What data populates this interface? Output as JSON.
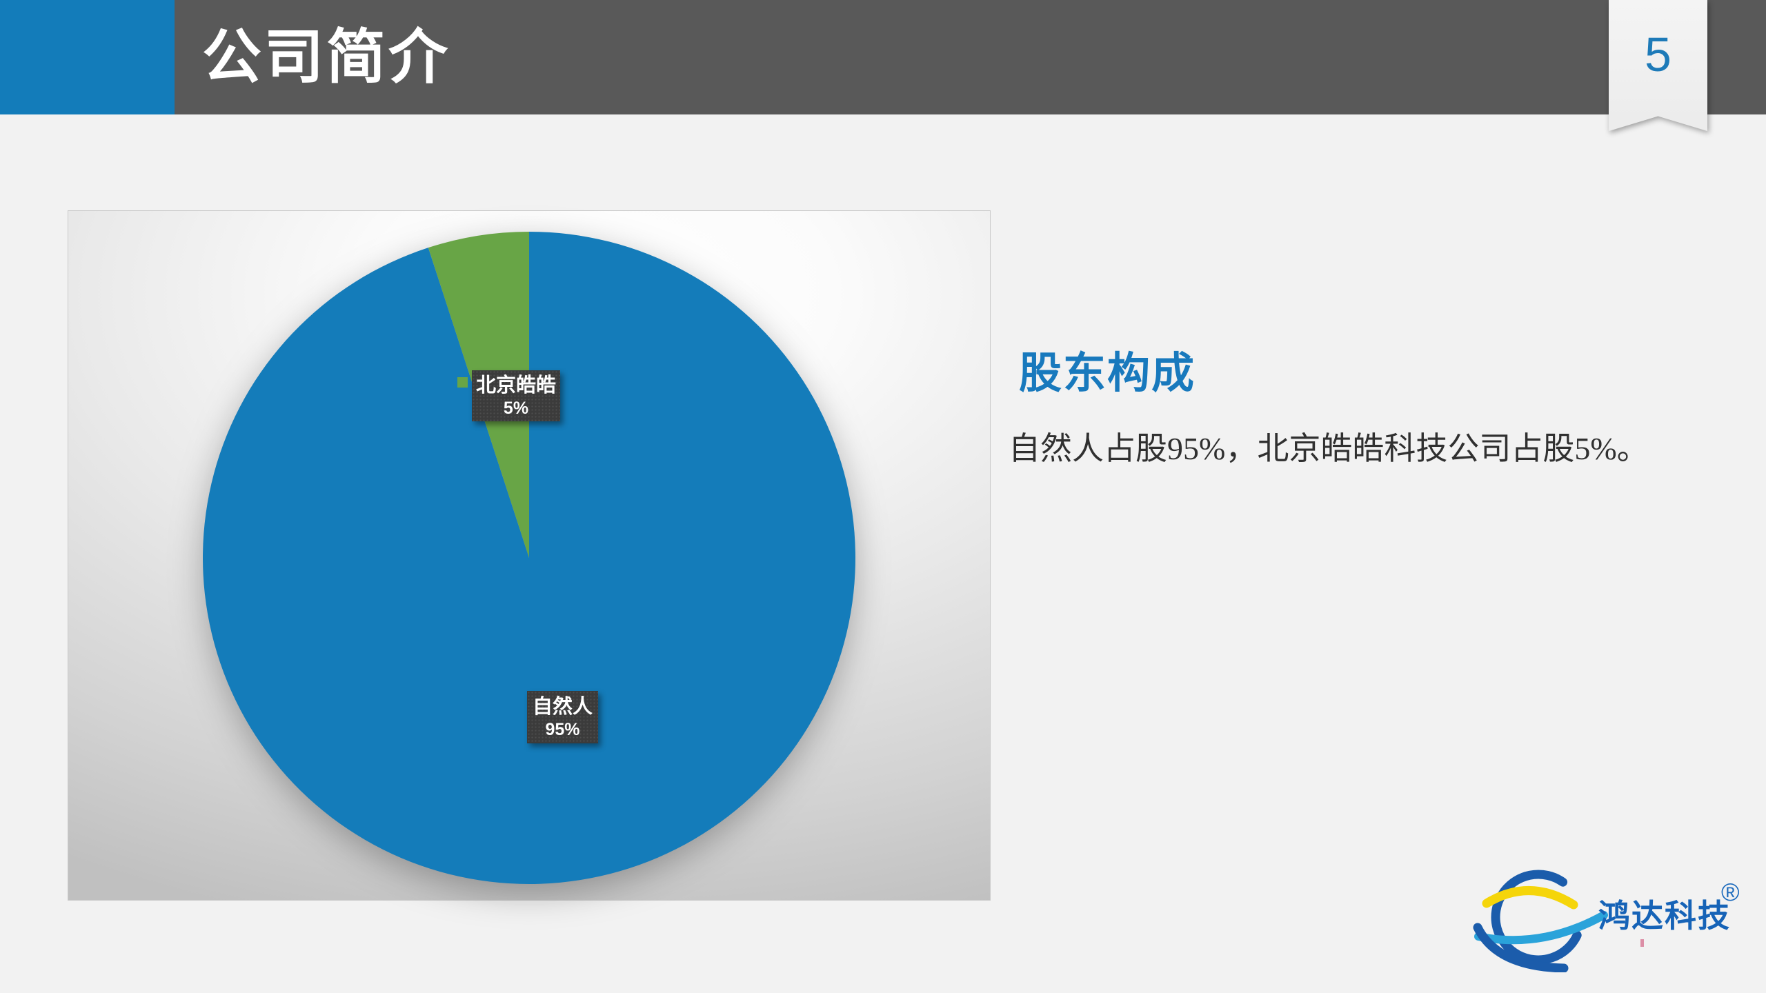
{
  "header": {
    "title": "公司简介",
    "page_number": "5"
  },
  "content": {
    "heading": "股东构成",
    "body_text": "自然人占股95%，北京皓皓科技公司占股5%。"
  },
  "chart_data": {
    "type": "pie",
    "title": "",
    "slices": [
      {
        "label": "自然人",
        "value": 95,
        "percent_label": "95%",
        "color": "#147cba"
      },
      {
        "label": "北京皓皓",
        "value": 5,
        "percent_label": "5%",
        "color": "#68a546"
      }
    ],
    "start_angle_deg": 0,
    "direction": "clockwise",
    "data_labels": "category name + percentage in dark boxes inside slices",
    "legend": "none; small green legend key square beside 北京皓皓 label",
    "background": "gray radial-gradient panel"
  },
  "logo": {
    "text": "鸿达科技",
    "registered_mark": "®"
  },
  "colors": {
    "accent_blue": "#137cba",
    "header_gray": "#595959",
    "pie_blue": "#147cba",
    "pie_green": "#68a546",
    "heading_blue": "#1879bd",
    "slide_background": "#f2f2f2",
    "label_box": "#3b3b3b",
    "page_number_blue": "#1d7ab8"
  }
}
